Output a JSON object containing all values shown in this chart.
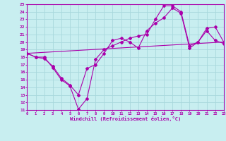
{
  "xlabel": "Windchill (Refroidissement éolien,°C)",
  "bg_color": "#c8eef0",
  "line_color": "#aa00aa",
  "grid_color": "#a8d8dc",
  "xlim": [
    0,
    23
  ],
  "ylim": [
    11,
    25
  ],
  "xticks": [
    0,
    1,
    2,
    3,
    4,
    5,
    6,
    7,
    8,
    9,
    10,
    11,
    12,
    13,
    14,
    15,
    16,
    17,
    18,
    19,
    20,
    21,
    22,
    23
  ],
  "yticks": [
    11,
    12,
    13,
    14,
    15,
    16,
    17,
    18,
    19,
    20,
    21,
    22,
    23,
    24,
    25
  ],
  "series1_x": [
    0,
    1,
    2,
    3,
    4,
    5,
    6,
    7,
    8,
    9,
    10,
    11,
    12,
    13,
    14,
    15,
    16,
    17,
    18,
    19,
    20,
    21,
    22,
    23
  ],
  "series1_y": [
    18.5,
    18.0,
    18.0,
    16.6,
    15.0,
    14.2,
    11.1,
    12.5,
    17.7,
    19.0,
    19.5,
    20.0,
    20.5,
    20.8,
    21.0,
    23.0,
    24.8,
    24.8,
    24.0,
    19.5,
    20.0,
    21.8,
    22.0,
    20.0
  ],
  "series2_x": [
    0,
    1,
    2,
    3,
    4,
    5,
    6,
    7,
    8,
    9,
    10,
    11,
    12,
    13,
    14,
    15,
    16,
    17,
    18,
    19,
    20,
    21,
    22,
    23
  ],
  "series2_y": [
    18.5,
    18.0,
    17.8,
    16.8,
    15.2,
    14.3,
    13.0,
    16.5,
    17.0,
    18.5,
    20.2,
    20.5,
    20.0,
    19.2,
    21.5,
    22.5,
    23.2,
    24.5,
    23.8,
    19.2,
    20.0,
    21.5,
    20.2,
    19.8
  ],
  "series3_x": [
    0,
    23
  ],
  "series3_y": [
    18.5,
    20.0
  ]
}
